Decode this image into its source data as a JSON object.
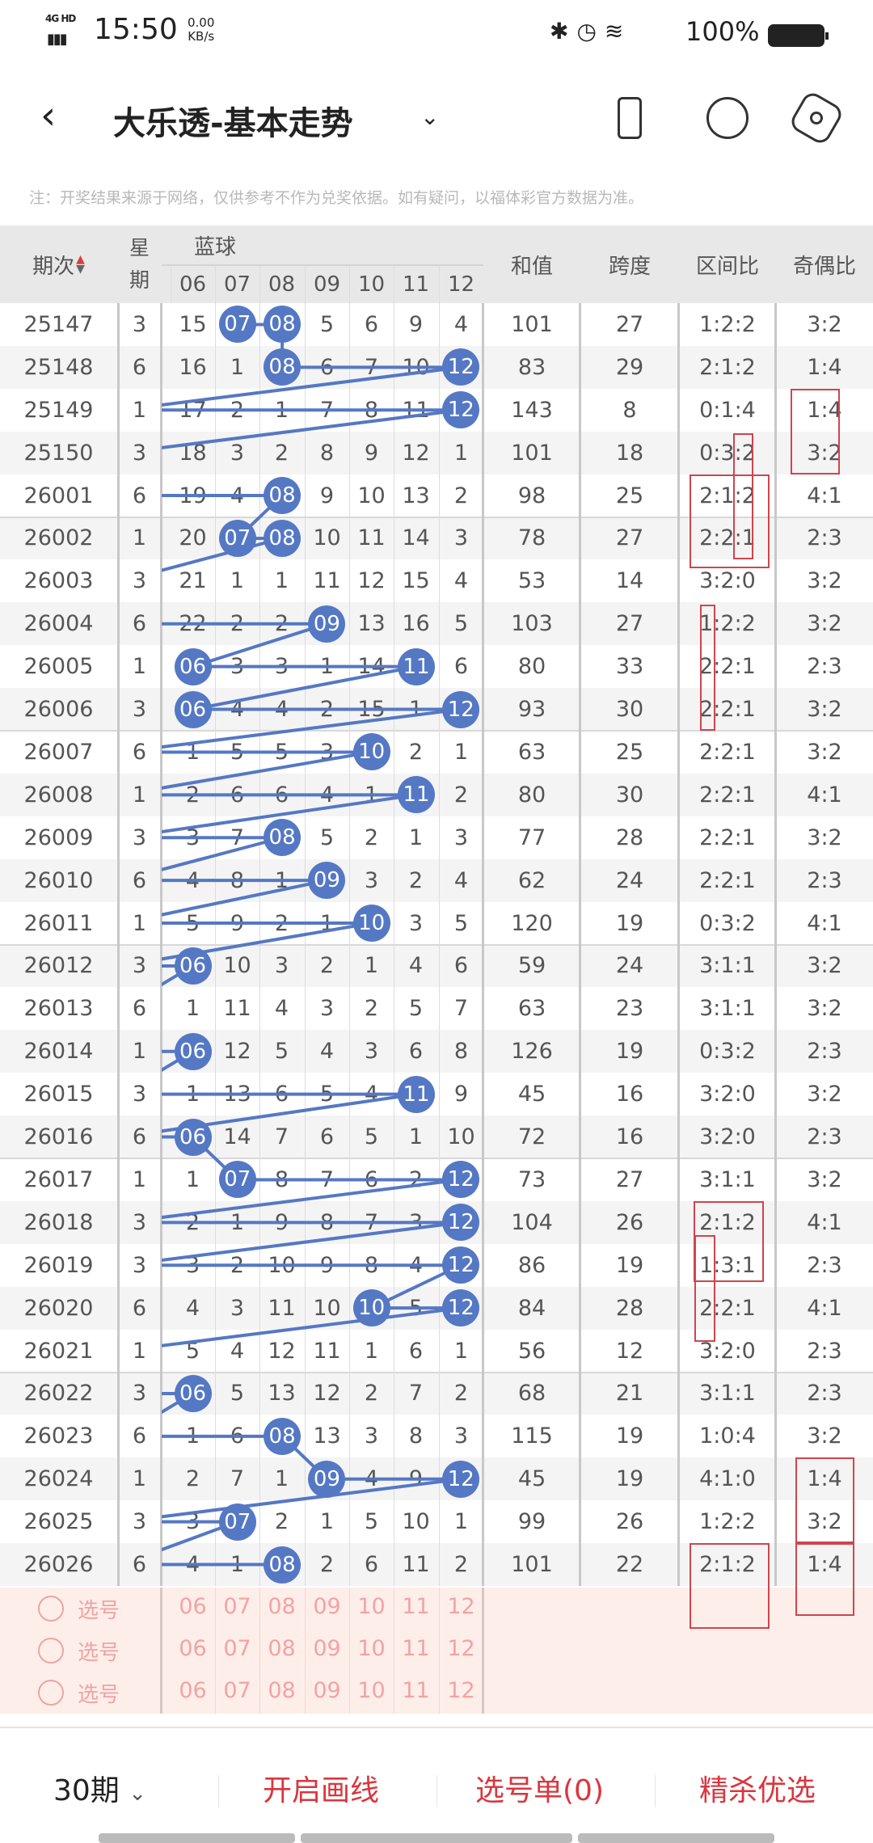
{
  "status_bar": {
    "network": "4G HD",
    "time": "15:50",
    "speed_value": "0.00",
    "speed_unit": "KB/s",
    "battery": "100%"
  },
  "header": {
    "back": "‹",
    "title": "大乐透-基本走势",
    "dropdown": "⌄"
  },
  "note": "注：开奖结果来源于网络，仅供参考不作为兑奖依据。如有疑问，以福体彩官方数据为准。",
  "table": {
    "headers": {
      "period": "期次",
      "week_top": "星",
      "week_bottom": "期",
      "blue": "蓝球",
      "sum": "和值",
      "span": "跨度",
      "zone": "区间比",
      "odd_even": "奇偶比"
    },
    "ball_columns": [
      "06",
      "07",
      "08",
      "09",
      "10",
      "11",
      "12"
    ],
    "rows": [
      {
        "period": "25147",
        "week": "3",
        "cells": [
          "15",
          "07",
          "08",
          "5",
          "6",
          "9",
          "4"
        ],
        "balls": [
          "07",
          "08"
        ],
        "sum": "101",
        "span": "27",
        "zone": "1:2:2",
        "oe": "3:2"
      },
      {
        "period": "25148",
        "week": "6",
        "cells": [
          "16",
          "1",
          "08",
          "6",
          "7",
          "10",
          "12"
        ],
        "balls": [
          "08",
          "12"
        ],
        "sum": "83",
        "span": "29",
        "zone": "2:1:2",
        "oe": "1:4"
      },
      {
        "period": "25149",
        "week": "1",
        "cells": [
          "17",
          "2",
          "1",
          "7",
          "8",
          "11",
          "12"
        ],
        "balls": [
          "12"
        ],
        "sum": "143",
        "span": "8",
        "zone": "0:1:4",
        "oe": "1:4"
      },
      {
        "period": "25150",
        "week": "3",
        "cells": [
          "18",
          "3",
          "2",
          "8",
          "9",
          "12",
          "1"
        ],
        "balls": [],
        "sum": "101",
        "span": "18",
        "zone": "0:3:2",
        "oe": "3:2"
      },
      {
        "period": "26001",
        "week": "6",
        "cells": [
          "19",
          "4",
          "08",
          "9",
          "10",
          "13",
          "2"
        ],
        "balls": [
          "08"
        ],
        "sum": "98",
        "span": "25",
        "zone": "2:1:2",
        "oe": "4:1"
      },
      {
        "period": "26002",
        "week": "1",
        "cells": [
          "20",
          "07",
          "08",
          "10",
          "11",
          "14",
          "3"
        ],
        "balls": [
          "07",
          "08"
        ],
        "sum": "78",
        "span": "27",
        "zone": "2:2:1",
        "oe": "2:3"
      },
      {
        "period": "26003",
        "week": "3",
        "cells": [
          "21",
          "1",
          "1",
          "11",
          "12",
          "15",
          "4"
        ],
        "balls": [],
        "sum": "53",
        "span": "14",
        "zone": "3:2:0",
        "oe": "3:2"
      },
      {
        "period": "26004",
        "week": "6",
        "cells": [
          "22",
          "2",
          "2",
          "09",
          "13",
          "16",
          "5"
        ],
        "balls": [
          "09"
        ],
        "sum": "103",
        "span": "27",
        "zone": "1:2:2",
        "oe": "3:2"
      },
      {
        "period": "26005",
        "week": "1",
        "cells": [
          "06",
          "3",
          "3",
          "1",
          "14",
          "11",
          "6"
        ],
        "balls": [
          "06",
          "11"
        ],
        "sum": "80",
        "span": "33",
        "zone": "2:2:1",
        "oe": "2:3"
      },
      {
        "period": "26006",
        "week": "3",
        "cells": [
          "06",
          "4",
          "4",
          "2",
          "15",
          "1",
          "12"
        ],
        "balls": [
          "06",
          "12"
        ],
        "sum": "93",
        "span": "30",
        "zone": "2:2:1",
        "oe": "3:2"
      },
      {
        "period": "26007",
        "week": "6",
        "cells": [
          "1",
          "5",
          "5",
          "3",
          "10",
          "2",
          "1"
        ],
        "balls": [
          "10"
        ],
        "sum": "63",
        "span": "25",
        "zone": "2:2:1",
        "oe": "3:2"
      },
      {
        "period": "26008",
        "week": "1",
        "cells": [
          "2",
          "6",
          "6",
          "4",
          "1",
          "11",
          "2"
        ],
        "balls": [
          "11"
        ],
        "sum": "80",
        "span": "30",
        "zone": "2:2:1",
        "oe": "4:1"
      },
      {
        "period": "26009",
        "week": "3",
        "cells": [
          "3",
          "7",
          "08",
          "5",
          "2",
          "1",
          "3"
        ],
        "balls": [
          "08"
        ],
        "sum": "77",
        "span": "28",
        "zone": "2:2:1",
        "oe": "3:2"
      },
      {
        "period": "26010",
        "week": "6",
        "cells": [
          "4",
          "8",
          "1",
          "09",
          "3",
          "2",
          "4"
        ],
        "balls": [
          "09"
        ],
        "sum": "62",
        "span": "24",
        "zone": "2:2:1",
        "oe": "2:3"
      },
      {
        "period": "26011",
        "week": "1",
        "cells": [
          "5",
          "9",
          "2",
          "1",
          "10",
          "3",
          "5"
        ],
        "balls": [
          "10"
        ],
        "sum": "120",
        "span": "19",
        "zone": "0:3:2",
        "oe": "4:1"
      },
      {
        "period": "26012",
        "week": "3",
        "cells": [
          "06",
          "10",
          "3",
          "2",
          "1",
          "4",
          "6"
        ],
        "balls": [
          "06"
        ],
        "sum": "59",
        "span": "24",
        "zone": "3:1:1",
        "oe": "3:2"
      },
      {
        "period": "26013",
        "week": "6",
        "cells": [
          "1",
          "11",
          "4",
          "3",
          "2",
          "5",
          "7"
        ],
        "balls": [],
        "sum": "63",
        "span": "23",
        "zone": "3:1:1",
        "oe": "3:2"
      },
      {
        "period": "26014",
        "week": "1",
        "cells": [
          "06",
          "12",
          "5",
          "4",
          "3",
          "6",
          "8"
        ],
        "balls": [
          "06"
        ],
        "sum": "126",
        "span": "19",
        "zone": "0:3:2",
        "oe": "2:3"
      },
      {
        "period": "26015",
        "week": "3",
        "cells": [
          "1",
          "13",
          "6",
          "5",
          "4",
          "11",
          "9"
        ],
        "balls": [
          "11"
        ],
        "sum": "45",
        "span": "16",
        "zone": "3:2:0",
        "oe": "3:2"
      },
      {
        "period": "26016",
        "week": "6",
        "cells": [
          "06",
          "14",
          "7",
          "6",
          "5",
          "1",
          "10"
        ],
        "balls": [
          "06"
        ],
        "sum": "72",
        "span": "16",
        "zone": "3:2:0",
        "oe": "2:3"
      },
      {
        "period": "26017",
        "week": "1",
        "cells": [
          "1",
          "07",
          "8",
          "7",
          "6",
          "2",
          "12"
        ],
        "balls": [
          "07",
          "12"
        ],
        "sum": "73",
        "span": "27",
        "zone": "3:1:1",
        "oe": "3:2"
      },
      {
        "period": "26018",
        "week": "3",
        "cells": [
          "2",
          "1",
          "9",
          "8",
          "7",
          "3",
          "12"
        ],
        "balls": [
          "12"
        ],
        "sum": "104",
        "span": "26",
        "zone": "2:1:2",
        "oe": "4:1"
      },
      {
        "period": "26019",
        "week": "3",
        "cells": [
          "3",
          "2",
          "10",
          "9",
          "8",
          "4",
          "12"
        ],
        "balls": [
          "12"
        ],
        "sum": "86",
        "span": "19",
        "zone": "1:3:1",
        "oe": "2:3"
      },
      {
        "period": "26020",
        "week": "6",
        "cells": [
          "4",
          "3",
          "11",
          "10",
          "10",
          "5",
          "12"
        ],
        "balls": [
          "10",
          "12"
        ],
        "sum": "84",
        "span": "28",
        "zone": "2:2:1",
        "oe": "4:1"
      },
      {
        "period": "26021",
        "week": "1",
        "cells": [
          "5",
          "4",
          "12",
          "11",
          "1",
          "6",
          "1"
        ],
        "balls": [],
        "sum": "56",
        "span": "12",
        "zone": "3:2:0",
        "oe": "2:3"
      },
      {
        "period": "26022",
        "week": "3",
        "cells": [
          "06",
          "5",
          "13",
          "12",
          "2",
          "7",
          "2"
        ],
        "balls": [
          "06"
        ],
        "sum": "68",
        "span": "21",
        "zone": "3:1:1",
        "oe": "2:3"
      },
      {
        "period": "26023",
        "week": "6",
        "cells": [
          "1",
          "6",
          "08",
          "13",
          "3",
          "8",
          "3"
        ],
        "balls": [
          "08"
        ],
        "sum": "115",
        "span": "19",
        "zone": "1:0:4",
        "oe": "3:2"
      },
      {
        "period": "26024",
        "week": "1",
        "cells": [
          "2",
          "7",
          "1",
          "09",
          "4",
          "9",
          "12"
        ],
        "balls": [
          "09",
          "12"
        ],
        "sum": "45",
        "span": "19",
        "zone": "4:1:0",
        "oe": "1:4"
      },
      {
        "period": "26025",
        "week": "3",
        "cells": [
          "3",
          "07",
          "2",
          "1",
          "5",
          "10",
          "1"
        ],
        "balls": [
          "07"
        ],
        "sum": "99",
        "span": "26",
        "zone": "1:2:2",
        "oe": "3:2"
      },
      {
        "period": "26026",
        "week": "6",
        "cells": [
          "4",
          "1",
          "08",
          "2",
          "6",
          "11",
          "2"
        ],
        "balls": [
          "08"
        ],
        "sum": "101",
        "span": "22",
        "zone": "2:1:2",
        "oe": "1:4"
      }
    ]
  },
  "pick_rows": [
    {
      "label": "选号",
      "numbers": [
        "06",
        "07",
        "08",
        "09",
        "10",
        "11",
        "12"
      ]
    },
    {
      "label": "选号",
      "numbers": [
        "06",
        "07",
        "08",
        "09",
        "10",
        "11",
        "12"
      ]
    },
    {
      "label": "选号",
      "numbers": [
        "06",
        "07",
        "08",
        "09",
        "10",
        "11",
        "12"
      ]
    }
  ],
  "bottom_bar": {
    "periods": "30期",
    "periods_chevron": "⌄",
    "draw_lines": "开启画线",
    "pick_list": "选号单(0)",
    "premium": "精杀优选"
  },
  "colors": {
    "ball": "#5578c4",
    "accent_red": "#d9363e",
    "annotation": "#d0454d",
    "pick_bg": "#fdeeea"
  }
}
